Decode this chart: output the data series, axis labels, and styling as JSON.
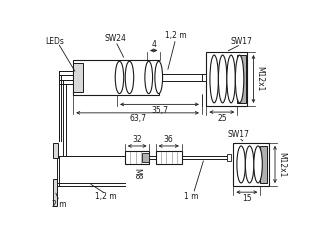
{
  "bg_color": "#ffffff",
  "line_color": "#1a1a1a",
  "gray_fill": "#b0b0b0",
  "gray_light": "#d8d8d8",
  "labels": {
    "LEDs": "LEDs",
    "SW24": "SW24",
    "dim4": "4",
    "dim1_2m_top": "1,2 m",
    "SW17_top": "SW17",
    "dim35_7": "35,7",
    "dim63_7": "63,7",
    "dim25": "25",
    "M12x1_top": "M12x1",
    "dim2m": "2 m",
    "dim1_2m_bot": "1,2 m",
    "M8": "M8",
    "dim32": "32",
    "dim36": "36",
    "dim1m": "1 m",
    "SW17_bot": "SW17",
    "dim15": "15",
    "M12x1_bot": "M12x1"
  },
  "font_size": 5.5
}
